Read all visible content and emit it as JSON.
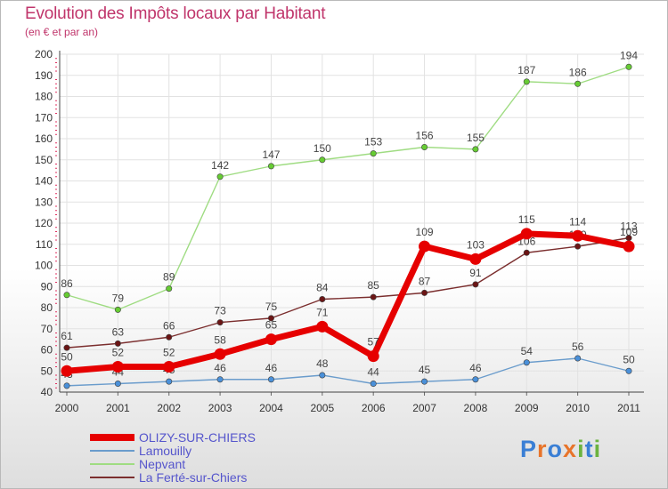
{
  "header": {
    "title": "Evolution des Impôts locaux par Habitant",
    "subtitle": "(en € et par an)"
  },
  "logo": {
    "text": "Proxiti",
    "letter_colors": [
      "#3a7fd5",
      "#e8742a",
      "#3a7fd5",
      "#e8742a",
      "#6cb33f",
      "#3a7fd5",
      "#6cb33f"
    ]
  },
  "chart_data": {
    "type": "line",
    "title": "Evolution des Impôts locaux par Habitant",
    "subtitle": "(en € et par an)",
    "x": [
      "2000",
      "2001",
      "2002",
      "2003",
      "2004",
      "2005",
      "2006",
      "2007",
      "2008",
      "2009",
      "2010",
      "2011"
    ],
    "ylim": [
      40,
      200
    ],
    "yticks": [
      40,
      50,
      60,
      70,
      80,
      90,
      100,
      110,
      120,
      130,
      140,
      150,
      160,
      170,
      180,
      190,
      200
    ],
    "grid": true,
    "legend_position": "bottom-left",
    "series": [
      {
        "name": "OLIZY-SUR-CHIERS",
        "color": "#e60000",
        "bold": true,
        "values": [
          50,
          52,
          52,
          58,
          65,
          71,
          57,
          109,
          103,
          115,
          114,
          109
        ]
      },
      {
        "name": "Lamouilly",
        "color": "#6a9ccc",
        "point_color": "#4a90d9",
        "bold": false,
        "values": [
          43,
          44,
          45,
          46,
          46,
          48,
          44,
          45,
          46,
          54,
          56,
          50
        ]
      },
      {
        "name": "Nepvant",
        "color": "#9fdc82",
        "point_color": "#66cc33",
        "bold": false,
        "values": [
          86,
          79,
          89,
          142,
          147,
          150,
          153,
          156,
          155,
          187,
          186,
          194
        ]
      },
      {
        "name": "La Ferté-sur-Chiers",
        "color": "#7b2e2e",
        "point_color": "#6b1515",
        "bold": false,
        "values": [
          61,
          63,
          66,
          73,
          75,
          84,
          85,
          87,
          91,
          106,
          109,
          113
        ]
      }
    ]
  }
}
